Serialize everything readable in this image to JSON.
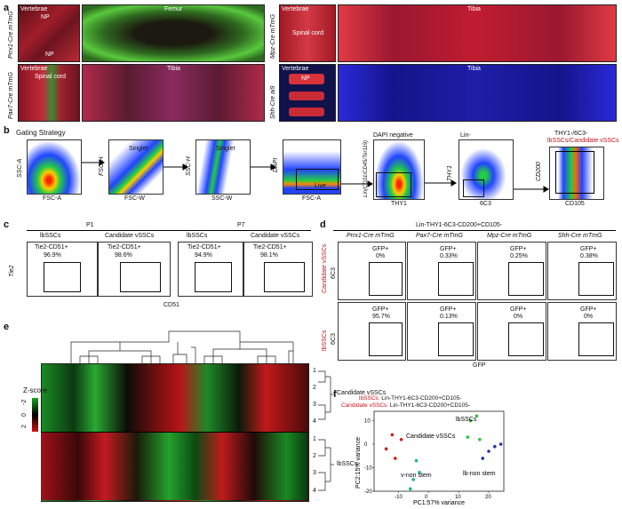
{
  "panels": {
    "a": "a",
    "b": "b",
    "c": "c",
    "d": "d",
    "e": "e",
    "f": "f"
  },
  "panel_a": {
    "rows": [
      {
        "genotype": "Prrx1-Cre mTmG",
        "left": [
          "Vertebrae",
          "NP",
          "NP"
        ],
        "right": "Femur"
      },
      {
        "genotype": "Pax7-Cre mTmG",
        "left": [
          "Vertebrae",
          "Spinal cord"
        ],
        "right": "Tibia"
      },
      {
        "genotype": "Mpz-Cre mTmG",
        "left": [
          "Vertebrae",
          "Spinal cord"
        ],
        "right": "Tibia"
      },
      {
        "genotype": "Shh-Cre ai9",
        "left": [
          "Vertebrae",
          "NP"
        ],
        "right": "Tibia"
      }
    ]
  },
  "panel_b": {
    "title": "Gating Strategy",
    "plots": [
      {
        "x": "FSC-A",
        "y": "SSC-A",
        "gate": ""
      },
      {
        "x": "FSC-W",
        "y": "FSC-H",
        "gate": "Singlet"
      },
      {
        "x": "SSC-W",
        "y": "SSC-H",
        "gate": "Singlet"
      },
      {
        "x": "FSC-A",
        "y": "DAPI",
        "gate": "Live"
      },
      {
        "x": "THY1",
        "y": "Lin(CD31/CD45/Ter119)",
        "gate": "DAPI negative"
      },
      {
        "x": "6C3",
        "y": "THY1",
        "gate": "Lin-"
      },
      {
        "x": "CD105",
        "y": "CD200",
        "gate": "THY1-/6C3-"
      }
    ],
    "last_gate_labels": [
      "lbSSCs/",
      "Candidate vSSCs"
    ]
  },
  "panel_c": {
    "groups": [
      "P1",
      "P7"
    ],
    "cols": [
      "lbSSCs",
      "Candidate vSSCs",
      "lbSSCs",
      "Candidate vSSCs"
    ],
    "gate_label": "Tie2-CD51+",
    "values": [
      "96.9%",
      "98.6%",
      "94.9%",
      "98.1%"
    ],
    "xlabel": "CD51",
    "ylabel": "Tie2"
  },
  "panel_d": {
    "title": "Lin-THY1-6C3-CD200+CD105-",
    "cols": [
      "Prrx1-Cre mTmG",
      "Pax7-Cre mTmG",
      "Mpz-Cre mTmG",
      "Shh-Cre mTmG"
    ],
    "rows": [
      {
        "name": "Candidate vSSCs",
        "values": [
          "0%",
          "0.33%",
          "0.25%",
          "0.38%"
        ]
      },
      {
        "name": "lbSSCs",
        "values": [
          "95.7%",
          "0.13%",
          "0%",
          "0%"
        ]
      }
    ],
    "gate_label": "GFP+",
    "xlabel": "GFP",
    "ylabel": "6C3"
  },
  "panel_e": {
    "zscore_label": "Z-score",
    "zscore_ticks": [
      "-2",
      "0",
      "2"
    ],
    "rows": [
      "1",
      "2",
      "3",
      "4",
      "1",
      "2",
      "3",
      "4"
    ],
    "groups": [
      "Candidate vSSCs",
      "lbSSCs"
    ]
  },
  "panel_f": {
    "legend": [
      {
        "name": "lbSSCs:",
        "desc": " Lin-THY1-6C3-CD200+CD105-"
      },
      {
        "name": "Candidate vSSCs:",
        "desc": " Lin-THY1-6C3-CD200+CD105-"
      }
    ],
    "annotations": [
      "Candidate vSSCs",
      "lbSSCs",
      "v-non stem",
      "lb-non stem"
    ],
    "chart_data": {
      "type": "scatter",
      "xlabel": "PC1:57% variance",
      "ylabel": "PC2:15% variance",
      "xlim": [
        -18,
        25
      ],
      "ylim": [
        -20,
        14
      ],
      "xticks": [
        "-10",
        "0",
        "10",
        "20"
      ],
      "yticks": [
        "10",
        "0",
        "-10",
        "-20"
      ],
      "series": [
        {
          "name": "Candidate vSSCs",
          "color": "#d0201e",
          "points": [
            [
              -14,
              -2
            ],
            [
              -12,
              4
            ],
            [
              -11,
              -6
            ],
            [
              -9,
              2
            ]
          ]
        },
        {
          "name": "lbSSCs",
          "color": "#2fbf3a",
          "points": [
            [
              14,
              10
            ],
            [
              16,
              12
            ],
            [
              13,
              3
            ],
            [
              17,
              2
            ]
          ]
        },
        {
          "name": "v-non stem",
          "color": "#1fb38a",
          "points": [
            [
              -4,
              -7
            ],
            [
              -3,
              -12
            ],
            [
              -5,
              -15
            ],
            [
              -6,
              -19
            ]
          ]
        },
        {
          "name": "lb-non stem",
          "color": "#2436a8",
          "points": [
            [
              18,
              -6
            ],
            [
              20,
              -3
            ],
            [
              22,
              -1
            ],
            [
              24,
              0
            ]
          ]
        }
      ]
    }
  },
  "colors": {
    "accent_red": "#c0121a",
    "tissue_red": "#b81b2a",
    "gfp_green": "#2fa52c",
    "blue": "#1d2bb0"
  }
}
